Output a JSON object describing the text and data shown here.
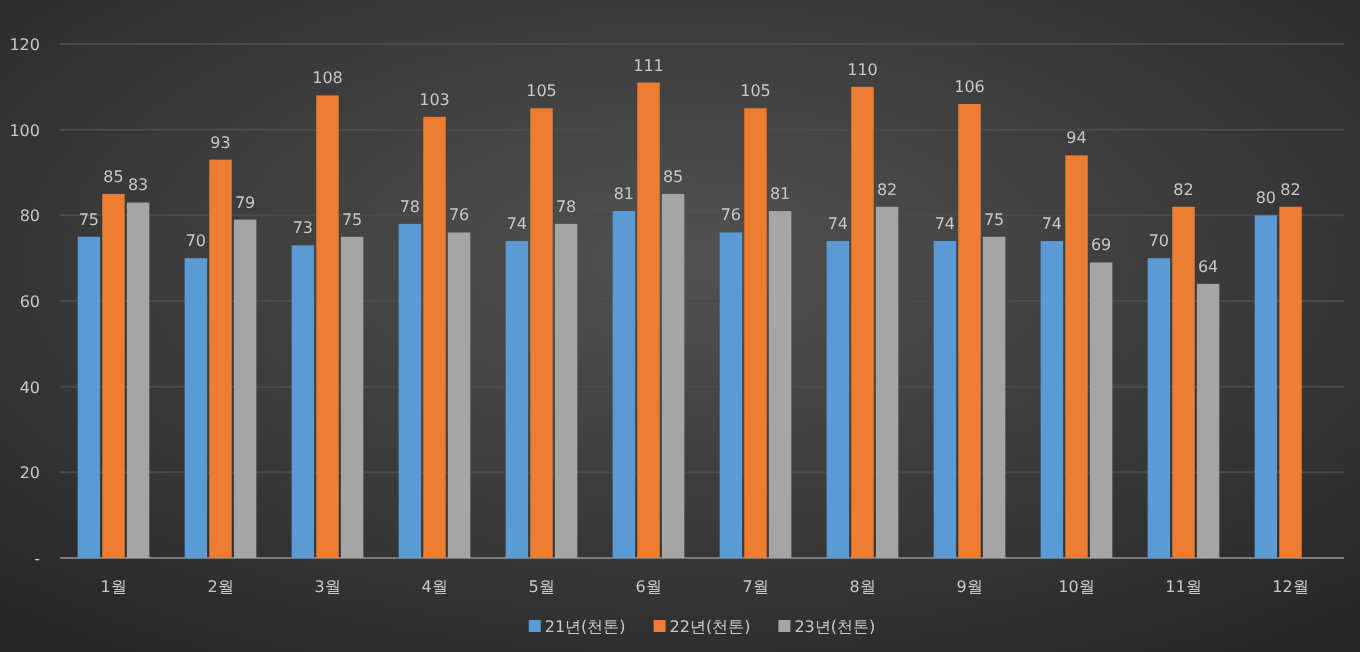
{
  "chart_data": {
    "type": "bar",
    "categories": [
      "1월",
      "2월",
      "3월",
      "4월",
      "5월",
      "6월",
      "7월",
      "8월",
      "9월",
      "10월",
      "11월",
      "12월"
    ],
    "series": [
      {
        "name": "21년(천톤)",
        "color": "#5b9bd5",
        "values": [
          75,
          70,
          73,
          78,
          74,
          81,
          76,
          74,
          74,
          74,
          70,
          80
        ]
      },
      {
        "name": "22년(천톤)",
        "color": "#ed7d31",
        "values": [
          85,
          93,
          108,
          103,
          105,
          111,
          105,
          110,
          106,
          94,
          82,
          82
        ]
      },
      {
        "name": "23년(천톤)",
        "color": "#a5a5a5",
        "values": [
          83,
          79,
          75,
          76,
          78,
          85,
          81,
          82,
          75,
          69,
          64,
          null
        ]
      }
    ],
    "ylim": [
      0,
      120
    ],
    "yticks": [
      {
        "value": 0,
        "label": "-"
      },
      20,
      40,
      60,
      80,
      100,
      120
    ],
    "grid": "y",
    "legend": "bottom",
    "data_labels": true
  }
}
